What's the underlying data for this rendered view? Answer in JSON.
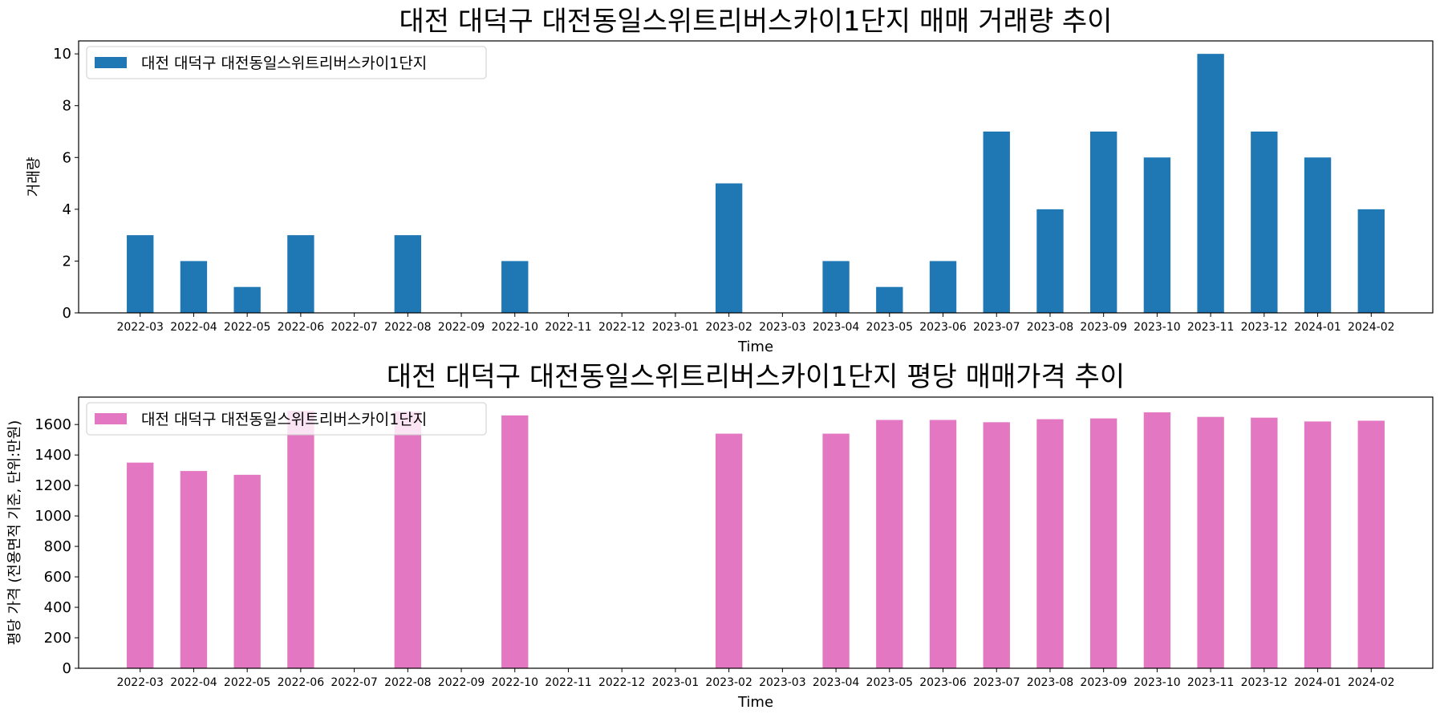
{
  "chart_data": [
    {
      "type": "bar",
      "title": "대전 대덕구 대전동일스위트리버스카이1단지 매매 거래량 추이",
      "xlabel": "Time",
      "ylabel": "거래량",
      "categories": [
        "2022-03",
        "2022-04",
        "2022-05",
        "2022-06",
        "2022-07",
        "2022-08",
        "2022-09",
        "2022-10",
        "2022-11",
        "2022-12",
        "2023-01",
        "2023-02",
        "2023-03",
        "2023-04",
        "2023-05",
        "2023-06",
        "2023-07",
        "2023-08",
        "2023-09",
        "2023-10",
        "2023-11",
        "2023-12",
        "2024-01",
        "2024-02"
      ],
      "ylim": [
        0,
        10.5
      ],
      "yticks": [
        0,
        2,
        4,
        6,
        8,
        10
      ],
      "legend_position": "top-left",
      "series": [
        {
          "name": "대전 대덕구 대전동일스위트리버스카이1단지",
          "color": "#1f77b4",
          "values": [
            3,
            2,
            1,
            3,
            0,
            3,
            0,
            2,
            0,
            0,
            0,
            5,
            0,
            2,
            1,
            2,
            7,
            4,
            7,
            6,
            10,
            7,
            6,
            4
          ]
        }
      ]
    },
    {
      "type": "bar",
      "title": "대전 대덕구 대전동일스위트리버스카이1단지 평당 매매가격 추이",
      "xlabel": "Time",
      "ylabel": "평당 가격 (전용면적 기준, 단위:만원)",
      "categories": [
        "2022-03",
        "2022-04",
        "2022-05",
        "2022-06",
        "2022-07",
        "2022-08",
        "2022-09",
        "2022-10",
        "2022-11",
        "2022-12",
        "2023-01",
        "2023-02",
        "2023-03",
        "2023-04",
        "2023-05",
        "2023-06",
        "2023-07",
        "2023-08",
        "2023-09",
        "2023-10",
        "2023-11",
        "2023-12",
        "2024-01",
        "2024-02"
      ],
      "ylim": [
        0,
        1780
      ],
      "yticks": [
        0,
        200,
        400,
        600,
        800,
        1000,
        1200,
        1400,
        1600
      ],
      "legend_position": "top-left",
      "series": [
        {
          "name": "대전 대덕구 대전동일스위트리버스카이1단지",
          "color": "#e377c2",
          "values": [
            1350,
            1295,
            1270,
            1690,
            0,
            1685,
            0,
            1660,
            0,
            0,
            0,
            1540,
            0,
            1540,
            1630,
            1630,
            1615,
            1635,
            1640,
            1680,
            1650,
            1645,
            1620,
            1625
          ]
        }
      ]
    }
  ]
}
